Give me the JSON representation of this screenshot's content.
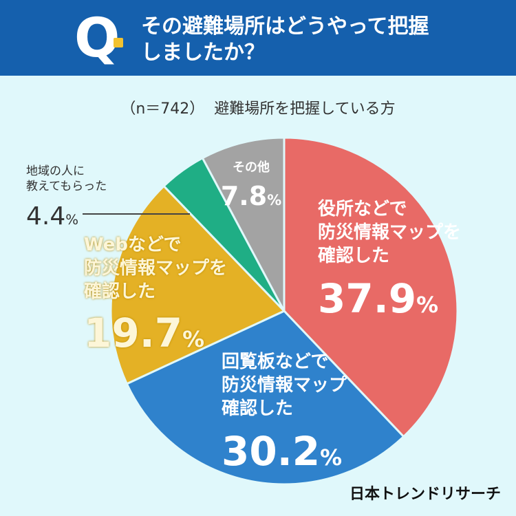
{
  "header": {
    "q_label": "Q",
    "question_line1": "その避難場所はどうやって把握",
    "question_line2": "しましたか？"
  },
  "sample": {
    "n_label": "（n＝742）",
    "caption": "避難場所を把握している方"
  },
  "colors": {
    "header_bg": "#1560ad",
    "background": "#e0f8fb",
    "accent_dot": "#f2c230"
  },
  "chart_data": {
    "type": "pie",
    "unit": "%",
    "start": "12 o'clock, clockwise",
    "slices": [
      {
        "label_lines": [
          "役所などで",
          "防災情報マップを",
          "確認した"
        ],
        "value": 37.9,
        "value_text": "37.9",
        "color": "#e86a66"
      },
      {
        "label_lines": [
          "回覧板などで",
          "防災情報マップ",
          "確認した"
        ],
        "value": 30.2,
        "value_text": "30.2",
        "color": "#2f82cc"
      },
      {
        "label_lines": [
          "Webなどで",
          "防災情報マップを",
          "確認した"
        ],
        "value": 19.7,
        "value_text": "19.7",
        "color": "#e4b125"
      },
      {
        "label_lines": [
          "地域の人に",
          "教えてもらった"
        ],
        "value": 4.4,
        "value_text": "4.4",
        "color": "#1fae85"
      },
      {
        "label_lines": [
          "その他"
        ],
        "value": 7.8,
        "value_text": "7.8",
        "color": "#a3a3a3"
      }
    ]
  },
  "brand": "日本トレンドリサーチ"
}
